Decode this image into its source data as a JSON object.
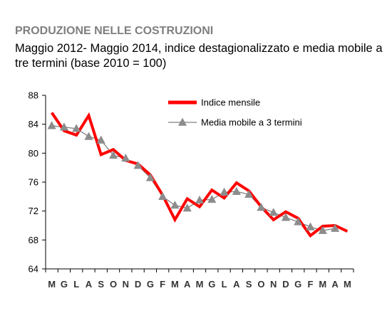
{
  "title": "PRODUZIONE NELLE COSTRUZIONI",
  "subtitle": "Maggio 2012- Maggio 2014, indice destagionalizzato e media mobile a tre termini (base 2010 = 100)",
  "chart_data": {
    "type": "line",
    "categories": [
      "M",
      "G",
      "L",
      "A",
      "S",
      "O",
      "N",
      "D",
      "G",
      "F",
      "M",
      "A",
      "M",
      "G",
      "L",
      "A",
      "S",
      "O",
      "N",
      "D",
      "G",
      "F",
      "M",
      "A",
      "M"
    ],
    "ylim": [
      64,
      88
    ],
    "yticks": [
      64,
      68,
      72,
      76,
      80,
      84,
      88
    ],
    "grid": false,
    "legend_position": "top-right",
    "series": [
      {
        "name": "Indice mensile",
        "color": "#ff0000",
        "marker": "none",
        "values": [
          85.6,
          83.1,
          82.5,
          85.2,
          79.8,
          80.5,
          79.0,
          78.5,
          77.0,
          74.2,
          70.8,
          73.7,
          72.6,
          74.9,
          73.8,
          75.9,
          74.8,
          72.6,
          70.8,
          71.9,
          71.0,
          68.6,
          69.9,
          70.0,
          69.2
        ]
      },
      {
        "name": "Media mobile a 3 termini",
        "color": "#808080",
        "marker": "triangle",
        "values": [
          83.8,
          83.6,
          83.4,
          82.3,
          81.8,
          79.7,
          79.3,
          78.3,
          76.6,
          74.0,
          72.8,
          72.4,
          73.5,
          73.6,
          74.6,
          74.7,
          74.3,
          72.5,
          71.8,
          71.1,
          70.5,
          69.8,
          69.3,
          69.6,
          null
        ]
      }
    ]
  }
}
